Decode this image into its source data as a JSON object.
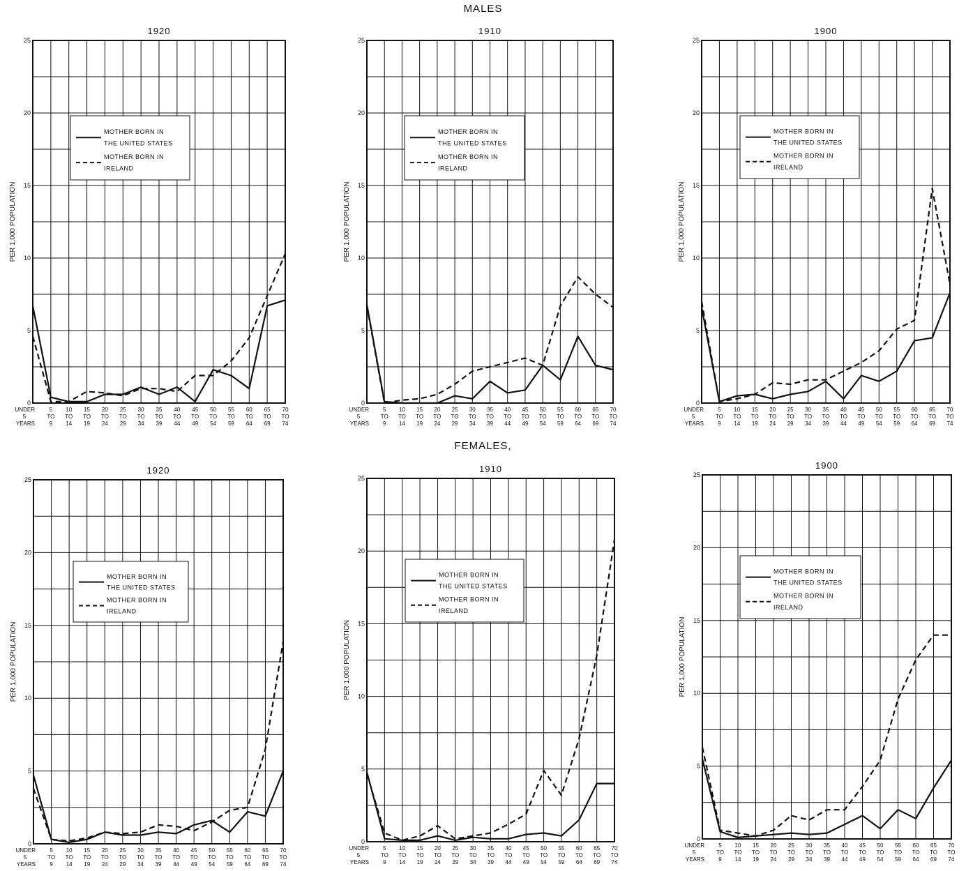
{
  "sections": {
    "males": "MALES",
    "females": "FEMALES,"
  },
  "colors": {
    "line": "#111111",
    "grid": "#111111",
    "background": "#ffffff"
  },
  "chart_data": [
    {
      "type": "line",
      "panel_group": "MALES",
      "title": "1920",
      "ylabel": "PER 1,000 POPULATION",
      "ylim": [
        0,
        25
      ],
      "yticks": [
        "0",
        "5",
        "10",
        "15",
        "20",
        "25"
      ],
      "x_top": [
        "UNDER",
        "5",
        "10",
        "15",
        "20",
        "25",
        "30",
        "35",
        "40",
        "45",
        "50",
        "55",
        "60",
        "65",
        "70"
      ],
      "x_mid": [
        "5",
        "TO",
        "TO",
        "TO",
        "TO",
        "TO",
        "TO",
        "TO",
        "TO",
        "TO",
        "TO",
        "TO",
        "TO",
        "TO",
        "TO"
      ],
      "x_bot": [
        "YEARS",
        "9",
        "14",
        "19",
        "24",
        "29",
        "34",
        "39",
        "44",
        "49",
        "54",
        "59",
        "64",
        "69",
        "74"
      ],
      "legend": [
        "MOTHER BORN IN",
        "THE UNITED STATES",
        "MOTHER BORN IN",
        "IRELAND"
      ],
      "series": [
        {
          "name": "MOTHER BORN IN THE UNITED STATES",
          "style": "solid",
          "values": [
            6.7,
            0.4,
            0.1,
            0.1,
            0.6,
            0.6,
            1.1,
            0.6,
            1.1,
            0.1,
            2.3,
            1.9,
            1.0,
            6.7,
            7.1
          ]
        },
        {
          "name": "MOTHER BORN IN IRELAND",
          "style": "dashed",
          "values": [
            4.6,
            0.1,
            0.1,
            0.8,
            0.7,
            0.5,
            1.0,
            1.0,
            0.8,
            1.9,
            1.9,
            2.9,
            4.5,
            7.4,
            10.3
          ]
        }
      ]
    },
    {
      "type": "line",
      "panel_group": "MALES",
      "title": "1910",
      "ylabel": "PER 1,000 POPULATION",
      "ylim": [
        0,
        25
      ],
      "yticks": [
        "0",
        "5",
        "10",
        "15",
        "20",
        "25"
      ],
      "x_top": [
        "UNDER",
        "5",
        "10",
        "15",
        "20",
        "25",
        "30",
        "35",
        "40",
        "45",
        "50",
        "55",
        "60",
        "65",
        "70"
      ],
      "x_mid": [
        "5",
        "TO",
        "TO",
        "TO",
        "TO",
        "TO",
        "TO",
        "TO",
        "TO",
        "TO",
        "TO",
        "TO",
        "TO",
        "TO",
        "TO"
      ],
      "x_bot": [
        "YEARS",
        "9",
        "14",
        "19",
        "24",
        "29",
        "34",
        "39",
        "44",
        "49",
        "54",
        "59",
        "64",
        "69",
        "74"
      ],
      "legend": [
        "MOTHER BORN IN",
        "THE UNITED STATES",
        "MOTHER BORN IN",
        "IRELAND"
      ],
      "series": [
        {
          "name": "MOTHER BORN IN THE UNITED STATES",
          "style": "solid",
          "values": [
            6.8,
            0.1,
            0.0,
            0.0,
            0.0,
            0.5,
            0.3,
            1.5,
            0.7,
            0.9,
            2.6,
            1.6,
            4.6,
            2.6,
            2.3
          ]
        },
        {
          "name": "MOTHER BORN IN IRELAND",
          "style": "dashed",
          "values": [
            6.7,
            0.0,
            0.2,
            0.3,
            0.6,
            1.3,
            2.2,
            2.5,
            2.8,
            3.1,
            2.6,
            6.7,
            8.7,
            7.5,
            6.6
          ]
        }
      ]
    },
    {
      "type": "line",
      "panel_group": "MALES",
      "title": "1900",
      "ylabel": "PER 1,000 POPULATION",
      "ylim": [
        0,
        25
      ],
      "yticks": [
        "0",
        "5",
        "10",
        "15",
        "20",
        "25"
      ],
      "x_top": [
        "UNDER",
        "5",
        "10",
        "15",
        "20",
        "25",
        "30",
        "35",
        "40",
        "45",
        "50",
        "55",
        "60",
        "65",
        "70"
      ],
      "x_mid": [
        "5",
        "TO",
        "TO",
        "TO",
        "TO",
        "TO",
        "TO",
        "TO",
        "TO",
        "TO",
        "TO",
        "TO",
        "TO",
        "TO",
        "TO"
      ],
      "x_bot": [
        "YEARS",
        "9",
        "14",
        "19",
        "24",
        "29",
        "34",
        "39",
        "44",
        "49",
        "54",
        "59",
        "64",
        "69",
        "74"
      ],
      "legend": [
        "MOTHER BORN IN",
        "THE UNITED STATES",
        "MOTHER BORN IN",
        "IRELAND"
      ],
      "series": [
        {
          "name": "MOTHER BORN IN THE UNITED STATES",
          "style": "solid",
          "values": [
            6.6,
            0.1,
            0.5,
            0.6,
            0.3,
            0.6,
            0.8,
            1.5,
            0.3,
            1.9,
            1.5,
            2.2,
            4.3,
            4.5,
            7.6
          ]
        },
        {
          "name": "MOTHER BORN IN IRELAND",
          "style": "dashed",
          "values": [
            7.0,
            0.1,
            0.3,
            0.6,
            1.4,
            1.3,
            1.6,
            1.6,
            2.2,
            2.8,
            3.6,
            5.1,
            5.7,
            14.8,
            8.2
          ]
        }
      ]
    },
    {
      "type": "line",
      "panel_group": "FEMALES,",
      "title": "1920",
      "ylabel": "PER 1,000 POPULATION",
      "ylim": [
        0,
        25
      ],
      "yticks": [
        "0",
        "5",
        "10",
        "15",
        "20",
        "25"
      ],
      "x_top": [
        "UNDER",
        "5",
        "10",
        "15",
        "20",
        "25",
        "30",
        "35",
        "40",
        "45",
        "50",
        "55",
        "60",
        "65",
        "70"
      ],
      "x_mid": [
        "5",
        "TO",
        "TO",
        "TO",
        "TO",
        "TO",
        "TO",
        "TO",
        "TO",
        "TO",
        "TO",
        "TO",
        "TO",
        "TO",
        "TO"
      ],
      "x_bot": [
        "YEARS",
        "9",
        "14",
        "19",
        "24",
        "29",
        "34",
        "39",
        "44",
        "49",
        "54",
        "59",
        "64",
        "69",
        "74"
      ],
      "legend": [
        "MOTHER BORN IN",
        "THE UNITED STATES",
        "MOTHER BORN IN",
        "IRELAND"
      ],
      "series": [
        {
          "name": "MOTHER BORN IN THE UNITED STATES",
          "style": "solid",
          "values": [
            4.7,
            0.3,
            0.1,
            0.3,
            0.8,
            0.6,
            0.6,
            0.8,
            0.7,
            1.3,
            1.6,
            0.8,
            2.2,
            1.9,
            5.0
          ]
        },
        {
          "name": "MOTHER BORN IN IRELAND",
          "style": "dashed",
          "values": [
            3.8,
            0.3,
            0.2,
            0.4,
            0.8,
            0.7,
            0.8,
            1.3,
            1.2,
            0.9,
            1.5,
            2.3,
            2.5,
            6.5,
            13.9
          ]
        }
      ]
    },
    {
      "type": "line",
      "panel_group": "FEMALES,",
      "title": "1910",
      "ylabel": "PER 1,000 POPULATION",
      "ylim": [
        0,
        25
      ],
      "yticks": [
        "0",
        "5",
        "10",
        "15",
        "20",
        "25"
      ],
      "x_top": [
        "UNDER",
        "5",
        "10",
        "15",
        "20",
        "25",
        "30",
        "35",
        "40",
        "45",
        "50",
        "55",
        "60",
        "65",
        "70"
      ],
      "x_mid": [
        "5",
        "TO",
        "TO",
        "TO",
        "TO",
        "TO",
        "TO",
        "TO",
        "TO",
        "TO",
        "TO",
        "TO",
        "TO",
        "TO",
        "TO"
      ],
      "x_bot": [
        "YEARS",
        "9",
        "14",
        "19",
        "24",
        "29",
        "34",
        "39",
        "44",
        "49",
        "54",
        "59",
        "64",
        "69",
        "74"
      ],
      "legend": [
        "MOTHER BORN IN",
        "THE UNITED STATES",
        "MOTHER BORN IN",
        "IRELAND"
      ],
      "series": [
        {
          "name": "MOTHER BORN IN THE UNITED STATES",
          "style": "solid",
          "values": [
            4.8,
            0.2,
            0.1,
            0.1,
            0.4,
            0.1,
            0.3,
            0.2,
            0.2,
            0.5,
            0.6,
            0.4,
            1.5,
            4.0,
            4.0
          ]
        },
        {
          "name": "MOTHER BORN IN IRELAND",
          "style": "dashed",
          "values": [
            4.7,
            0.6,
            0.1,
            0.4,
            1.1,
            0.2,
            0.4,
            0.6,
            1.2,
            1.9,
            4.9,
            3.2,
            7.1,
            12.8,
            20.8
          ]
        }
      ]
    },
    {
      "type": "line",
      "panel_group": "FEMALES,",
      "title": "1900",
      "ylabel": "PER 1,000 POPULATION",
      "ylim": [
        0,
        25
      ],
      "yticks": [
        "0",
        "5",
        "10",
        "15",
        "20",
        "25"
      ],
      "x_top": [
        "UNDER",
        "5",
        "10",
        "15",
        "20",
        "25",
        "30",
        "35",
        "40",
        "45",
        "50",
        "55",
        "60",
        "65",
        "70"
      ],
      "x_mid": [
        "5",
        "TO",
        "TO",
        "TO",
        "TO",
        "TO",
        "TO",
        "TO",
        "TO",
        "TO",
        "TO",
        "TO",
        "TO",
        "TO",
        "TO"
      ],
      "x_bot": [
        "YEARS",
        "9",
        "14",
        "19",
        "24",
        "29",
        "34",
        "39",
        "44",
        "49",
        "54",
        "59",
        "64",
        "69",
        "74"
      ],
      "legend": [
        "MOTHER BORN IN",
        "THE UNITED STATES",
        "MOTHER BORN IN",
        "IRELAND"
      ],
      "series": [
        {
          "name": "MOTHER BORN IN THE UNITED STATES",
          "style": "solid",
          "values": [
            5.5,
            0.5,
            0.1,
            0.2,
            0.3,
            0.4,
            0.3,
            0.4,
            1.0,
            1.6,
            0.7,
            2.0,
            1.4,
            3.5,
            5.4
          ]
        },
        {
          "name": "MOTHER BORN IN IRELAND",
          "style": "dashed",
          "values": [
            6.3,
            0.6,
            0.4,
            0.2,
            0.6,
            1.6,
            1.3,
            2.0,
            2.0,
            3.6,
            5.4,
            9.6,
            12.3,
            14.0,
            14.0
          ]
        }
      ]
    }
  ]
}
